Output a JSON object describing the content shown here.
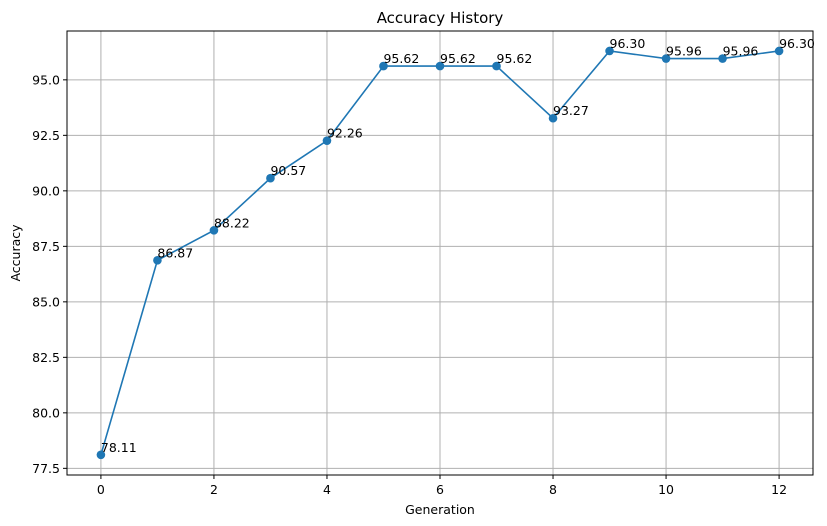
{
  "chart_data": {
    "type": "line",
    "title": "Accuracy History",
    "xlabel": "Generation",
    "ylabel": "Accuracy",
    "x": [
      0,
      1,
      2,
      3,
      4,
      5,
      6,
      7,
      8,
      9,
      10,
      11,
      12
    ],
    "series": [
      {
        "values": [
          78.11,
          86.87,
          88.22,
          90.57,
          92.26,
          95.62,
          95.62,
          95.62,
          93.27,
          96.3,
          95.96,
          95.96,
          96.3
        ],
        "labels": [
          "78.11",
          "86.87",
          "88.22",
          "90.57",
          "92.26",
          "95.62",
          "95.62",
          "95.62",
          "93.27",
          "96.30",
          "95.96",
          "95.96",
          "96.30"
        ],
        "color": "#1f77b4",
        "marker": "circle"
      }
    ],
    "xticks": [
      0,
      2,
      4,
      6,
      8,
      10,
      12
    ],
    "xtick_labels": [
      "0",
      "2",
      "4",
      "6",
      "8",
      "10",
      "12"
    ],
    "yticks": [
      77.5,
      80.0,
      82.5,
      85.0,
      87.5,
      90.0,
      92.5,
      95.0
    ],
    "ytick_labels": [
      "77.5",
      "80.0",
      "82.5",
      "85.0",
      "87.5",
      "90.0",
      "92.5",
      "95.0"
    ],
    "xlim": [
      -0.6,
      12.6
    ],
    "ylim": [
      77.2,
      97.2
    ],
    "grid": true,
    "legend": "none"
  }
}
